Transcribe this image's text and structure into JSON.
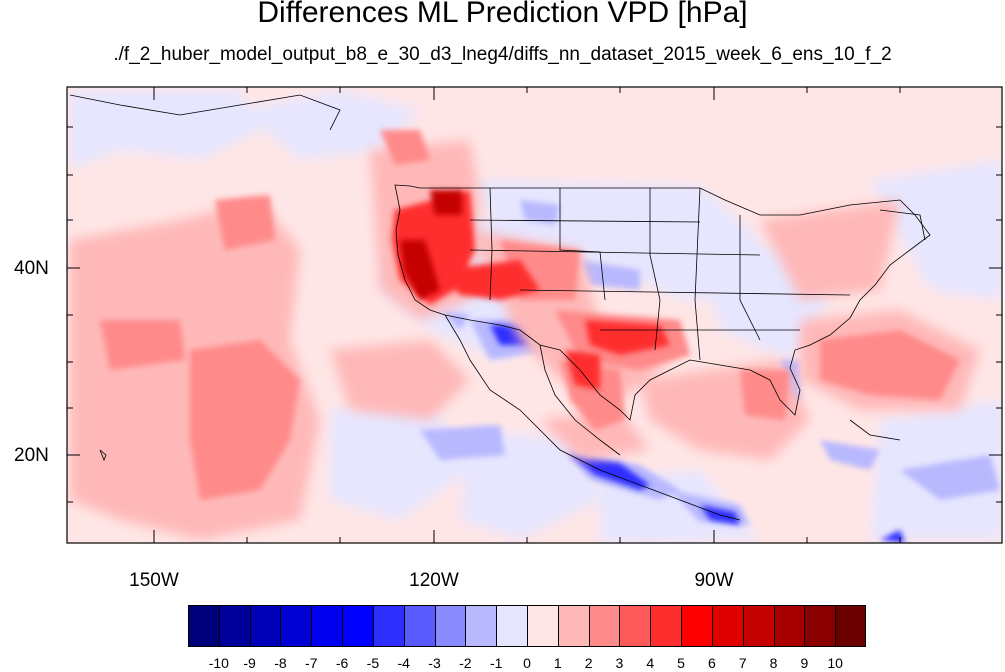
{
  "title": "Differences ML Prediction VPD [hPa]",
  "subtitle": "./f_2_huber_model_output_b8_e_30_d3_lneg4/diffs_nn_dataset_2015_week_6_ens_10_f_2",
  "axes": {
    "lat_ticks": [
      "40N",
      "20N"
    ],
    "lon_ticks": [
      "150W",
      "120W",
      "90W"
    ]
  },
  "colorbar": {
    "labels": [
      "-10",
      "-9",
      "-8",
      "-7",
      "-6",
      "-5",
      "-4",
      "-3",
      "-2",
      "-1",
      "0",
      "1",
      "2",
      "3",
      "4",
      "5",
      "6",
      "7",
      "8",
      "9",
      "10"
    ],
    "colors": [
      "#00007a",
      "#00009a",
      "#0000b8",
      "#0000d4",
      "#0000ee",
      "#0000ff",
      "#2e2eff",
      "#5a5aff",
      "#8a8aff",
      "#b8b8ff",
      "#e6e6ff",
      "#ffe6e6",
      "#ffb8b8",
      "#ff8a8a",
      "#ff5a5a",
      "#ff2e2e",
      "#ff0000",
      "#e00000",
      "#c40000",
      "#a80000",
      "#8a0000",
      "#6a0000"
    ]
  }
}
